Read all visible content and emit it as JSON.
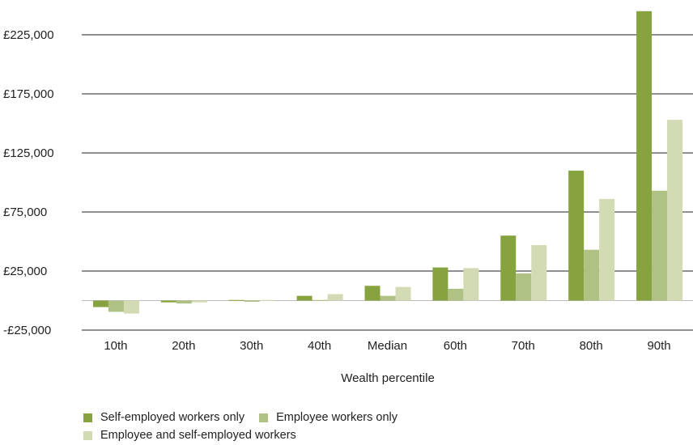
{
  "chart_data": {
    "type": "bar",
    "xlabel": "Wealth percentile",
    "ylabel": "",
    "ylim": [
      -25000,
      240000
    ],
    "y_ticks": [
      -25000,
      25000,
      75000,
      125000,
      175000,
      225000
    ],
    "y_tick_labels": [
      "-£25,000",
      "£25,000",
      "£75,000",
      "£125,000",
      "£175,000",
      "£225,000"
    ],
    "grid": true,
    "legend_position": "bottom-left",
    "categories": [
      "10th",
      "20th",
      "30th",
      "40th",
      "Median",
      "60th",
      "70th",
      "80th",
      "90th"
    ],
    "series": [
      {
        "name": "Self-employed workers only",
        "color": "#86a33f",
        "values": [
          -5500,
          -1500,
          500,
          4000,
          12500,
          28000,
          55000,
          110000,
          245000
        ]
      },
      {
        "name": "Employee workers only",
        "color": "#afc183",
        "values": [
          -9500,
          -2500,
          -1000,
          500,
          4000,
          10000,
          23000,
          43000,
          93000
        ]
      },
      {
        "name": "Employee and self-employed workers",
        "color": "#d2dbb3",
        "values": [
          -11000,
          -1500,
          500,
          5500,
          11500,
          27500,
          47000,
          86000,
          153000
        ]
      }
    ]
  }
}
